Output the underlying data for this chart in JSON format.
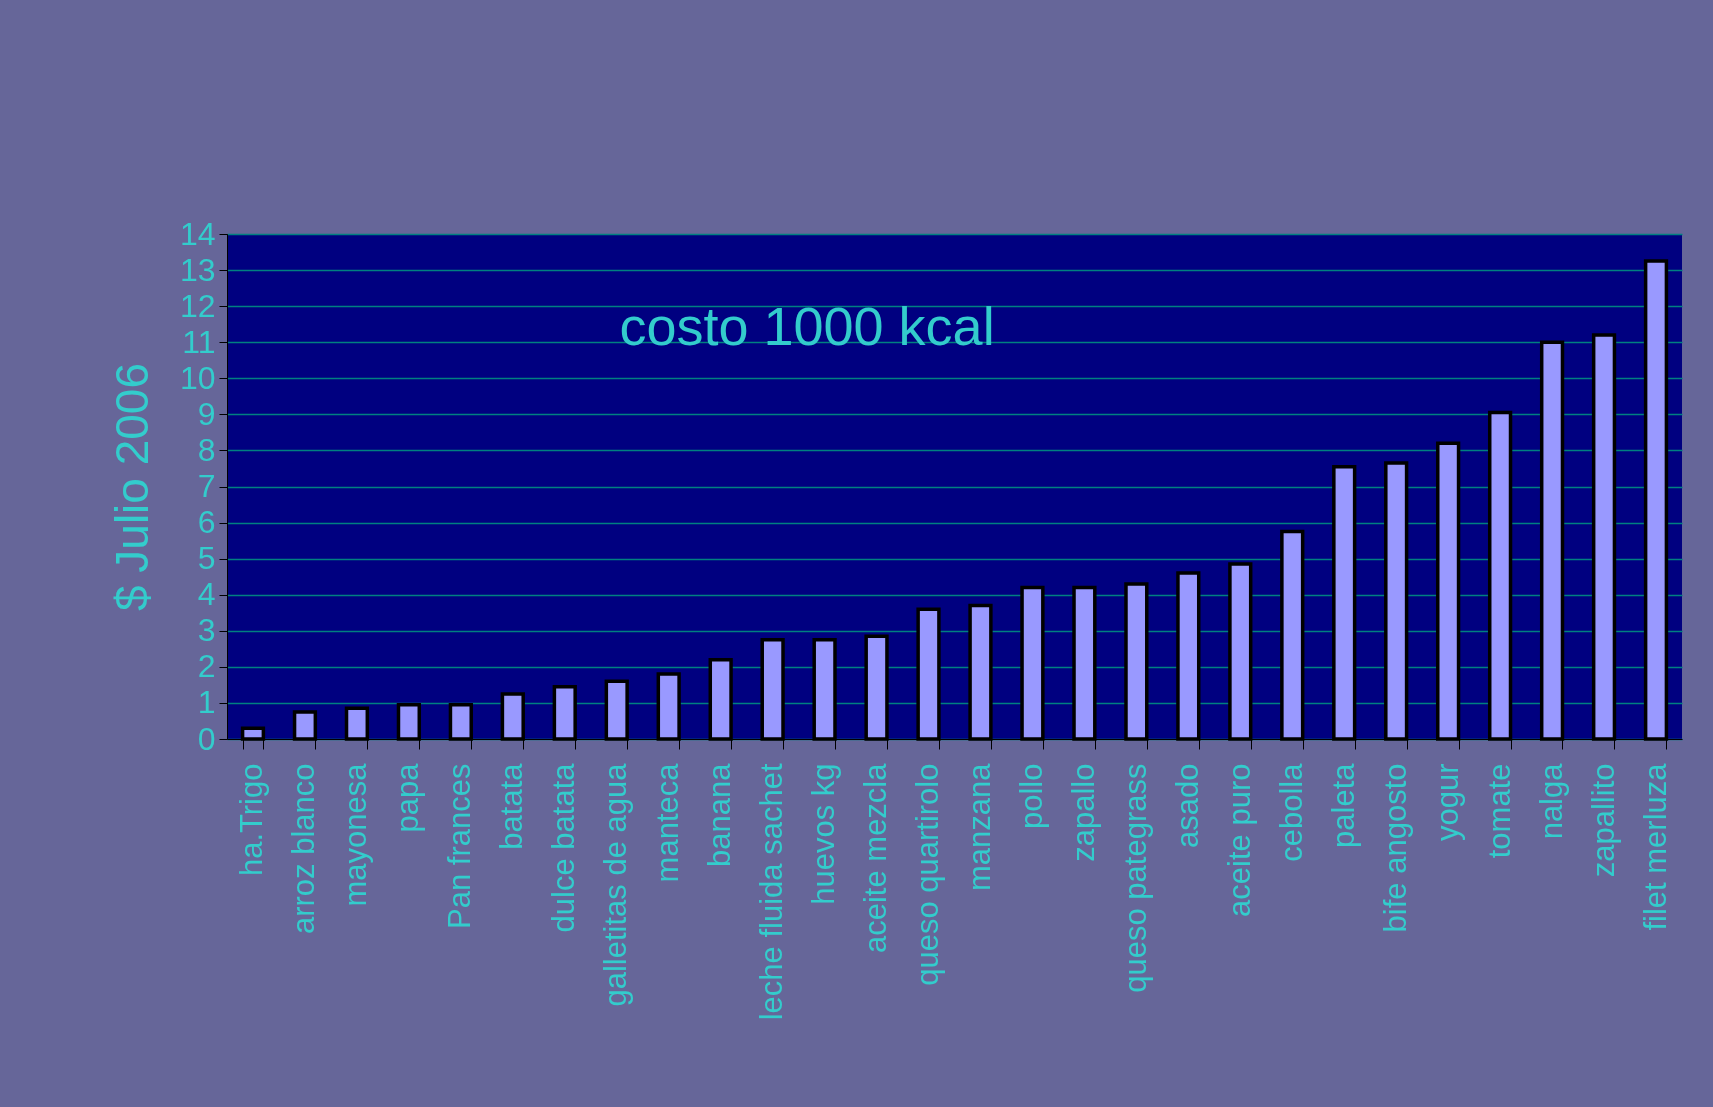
{
  "chart_data": {
    "type": "bar",
    "ylabel": "$ Julio 2006",
    "annotations": [
      "costo 1000 kcal"
    ],
    "categories": [
      "ha.Trigo",
      "arroz blanco",
      "mayonesa",
      "papa",
      "Pan frances",
      "batata",
      "dulce batata",
      "galletitas de agua",
      "manteca",
      "banana",
      "leche fluida sachet",
      "huevos kg",
      "aceite mezcla",
      "queso quartirolo",
      "manzana",
      "pollo",
      "zapallo",
      "queso pategrass",
      "asado",
      "aceite puro",
      "cebolla",
      "paleta",
      "bife angosto",
      "yogur",
      "tomate",
      "nalga",
      "zapallito",
      "filet merluza"
    ],
    "values": [
      0.3,
      0.75,
      0.85,
      0.95,
      0.95,
      1.25,
      1.45,
      1.6,
      1.8,
      2.2,
      2.75,
      2.75,
      2.85,
      3.6,
      3.7,
      4.2,
      4.2,
      4.3,
      4.6,
      4.85,
      5.75,
      7.55,
      7.65,
      8.2,
      9.05,
      11.0,
      11.2,
      13.25
    ],
    "color": "#9999ff",
    "ylim": [
      0,
      14
    ],
    "yticks": [
      0,
      1,
      2,
      3,
      4,
      5,
      6,
      7,
      8,
      9,
      10,
      11,
      12,
      13,
      14
    ],
    "grid": "y"
  }
}
